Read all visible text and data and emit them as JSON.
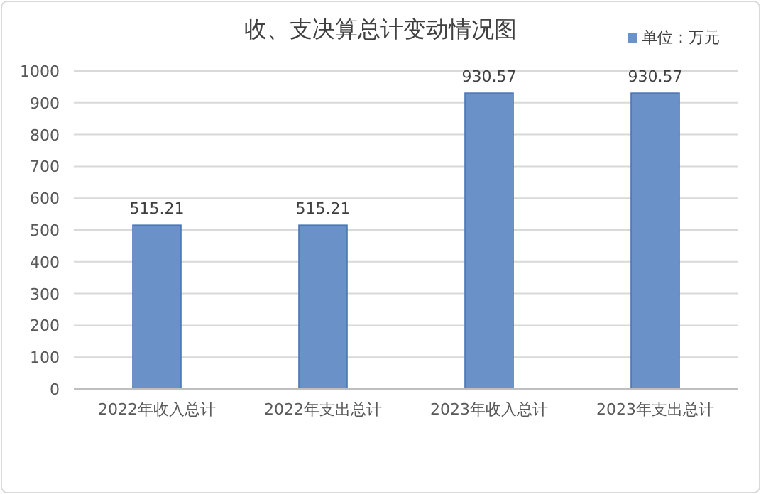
{
  "chart_data": {
    "type": "bar",
    "title": "收、支决算总计变动情况图",
    "categories": [
      "2022年收入总计",
      "2022年支出总计",
      "2023年收入总计",
      "2023年支出总计"
    ],
    "series": [
      {
        "name": "单位：万元",
        "color": "#6a92c9",
        "values": [
          515.21,
          515.21,
          930.57,
          930.57
        ]
      }
    ],
    "ylim": [
      0,
      1000
    ],
    "yticks": [
      0,
      100,
      200,
      300,
      400,
      500,
      600,
      700,
      800,
      900,
      1000
    ],
    "grid": "y",
    "legend": "top right",
    "data_labels": true
  }
}
